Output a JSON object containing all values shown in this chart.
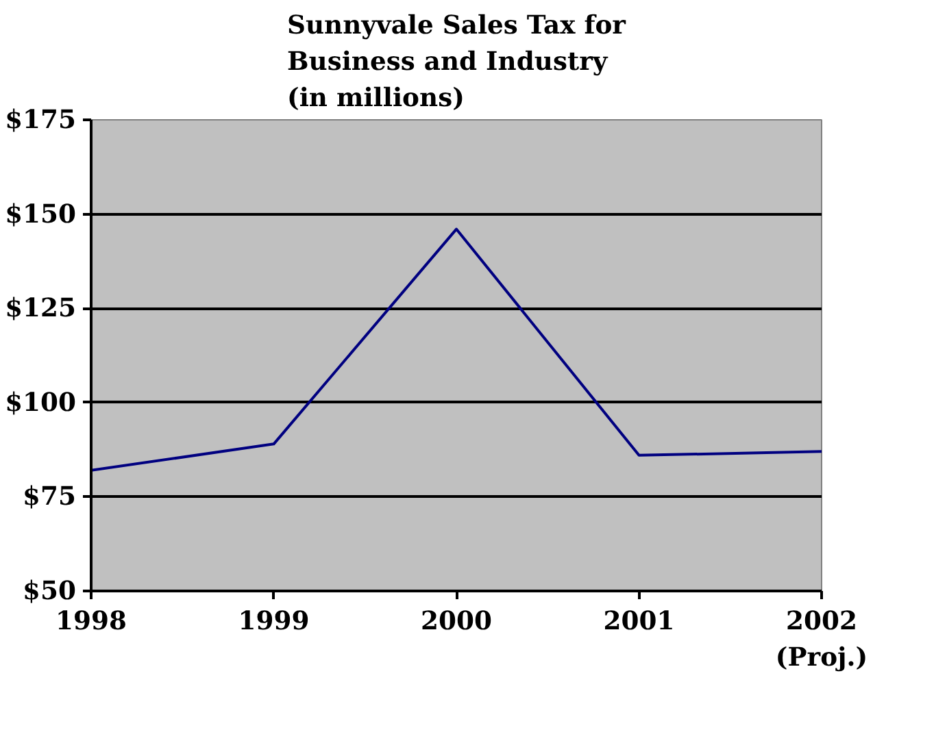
{
  "chart_data": {
    "type": "line",
    "title": "Sunnyvale Sales Tax for\nBusiness and Industry\n(in millions)",
    "x": [
      1998,
      1999,
      2000,
      2001,
      2002
    ],
    "series": [
      {
        "color": "#000080",
        "values": [
          82,
          89,
          146,
          86,
          87
        ]
      }
    ],
    "xlim": [
      1998,
      2002
    ],
    "xticks": [
      1998,
      1999,
      2000,
      {
        "value": 2001,
        "label": "2001"
      },
      {
        "value": 2002,
        "label": "2002\n(Proj.)"
      }
    ],
    "ylim": [
      50,
      175
    ],
    "yticks": [
      {
        "value": 50,
        "label": "$50"
      },
      {
        "value": 75,
        "label": "$75"
      },
      {
        "value": 100,
        "label": "$100"
      },
      {
        "value": 125,
        "label": "$125"
      },
      {
        "value": 150,
        "label": "$150"
      },
      {
        "value": 175,
        "label": "$175"
      }
    ],
    "grid": "y",
    "marker": "none",
    "line_style": "solid"
  }
}
